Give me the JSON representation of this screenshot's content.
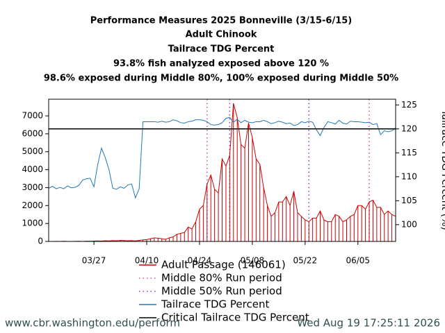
{
  "chart_data": {
    "type": "bar_line",
    "title": [
      "Performance Measures 2025 Bonneville (3/15-6/15)",
      "Adult Chinook",
      "Tailrace TDG Percent",
      "93.8% fish analyzed exposed above 120 %",
      "98.6% exposed during Middle 80%, 100% exposed during Middle 50%"
    ],
    "y2_label": "Tailrace TDG Percent (%)",
    "x": [
      "03/15",
      "03/16",
      "03/17",
      "03/18",
      "03/19",
      "03/20",
      "03/21",
      "03/22",
      "03/23",
      "03/24",
      "03/25",
      "03/26",
      "03/27",
      "03/28",
      "03/29",
      "03/30",
      "03/31",
      "04/01",
      "04/02",
      "04/03",
      "04/04",
      "04/05",
      "04/06",
      "04/07",
      "04/08",
      "04/09",
      "04/10",
      "04/11",
      "04/12",
      "04/13",
      "04/14",
      "04/15",
      "04/16",
      "04/17",
      "04/18",
      "04/19",
      "04/20",
      "04/21",
      "04/22",
      "04/23",
      "04/24",
      "04/25",
      "04/26",
      "04/27",
      "04/28",
      "04/29",
      "04/30",
      "05/01",
      "05/02",
      "05/03",
      "05/04",
      "05/05",
      "05/06",
      "05/07",
      "05/08",
      "05/09",
      "05/10",
      "05/11",
      "05/12",
      "05/13",
      "05/14",
      "05/15",
      "05/16",
      "05/17",
      "05/18",
      "05/19",
      "05/20",
      "05/21",
      "05/22",
      "05/23",
      "05/24",
      "05/25",
      "05/26",
      "05/27",
      "05/28",
      "05/29",
      "05/30",
      "05/31",
      "06/01",
      "06/02",
      "06/03",
      "06/04",
      "06/05",
      "06/06",
      "06/07",
      "06/08",
      "06/09",
      "06/10",
      "06/11",
      "06/12",
      "06/13",
      "06/14",
      "06/15"
    ],
    "xticks": [
      "03/27",
      "04/10",
      "04/24",
      "05/08",
      "05/22",
      "06/05"
    ],
    "series": [
      {
        "name": "Adult Passage (146061)",
        "color": "#cc0000",
        "axis": "y",
        "values": [
          0,
          0,
          5,
          0,
          10,
          0,
          0,
          5,
          10,
          0,
          15,
          10,
          20,
          30,
          20,
          40,
          30,
          50,
          40,
          60,
          50,
          40,
          50,
          30,
          60,
          80,
          100,
          150,
          200,
          180,
          150,
          120,
          200,
          250,
          400,
          450,
          500,
          800,
          700,
          1100,
          1800,
          2000,
          3200,
          3700,
          2900,
          2700,
          4600,
          4200,
          4800,
          7700,
          6900,
          5400,
          5200,
          6600,
          5800,
          4600,
          4300,
          3000,
          2000,
          1400,
          1600,
          2200,
          2200,
          2500,
          2000,
          2800,
          1600,
          1400,
          1200,
          1100,
          1300,
          1300,
          1700,
          1200,
          1100,
          1100,
          1500,
          1400,
          1100,
          1200,
          1400,
          1500,
          2000,
          2000,
          1800,
          2200,
          2300,
          1900,
          1900,
          1500,
          1700,
          1500,
          1400
        ]
      },
      {
        "name": "Tailrace TDG Percent",
        "color": "#1f77b4",
        "axis": "y2",
        "values": [
          107.6,
          108,
          107.5,
          107.8,
          107.5,
          108.1,
          107.7,
          107.8,
          108.2,
          109.3,
          109.6,
          109.7,
          107.9,
          112.5,
          116,
          114,
          111.5,
          107.6,
          107.4,
          107.9,
          107.6,
          108.3,
          108.5,
          105.6,
          107.5,
          121.5,
          121.5,
          121.5,
          121.5,
          121.4,
          121.6,
          121.4,
          121.5,
          121.9,
          121.7,
          121.3,
          121.2,
          121.5,
          121.6,
          121.9,
          121.9,
          121.8,
          121.5,
          120.9,
          120.8,
          120.9,
          121.3,
          122.2,
          122.4,
          121.4,
          122,
          121.3,
          121.8,
          121.4,
          121.3,
          121.5,
          121.5,
          121.8,
          121.5,
          121.1,
          121.3,
          121.6,
          121.4,
          121.1,
          121.2,
          120.7,
          120.9,
          121.5,
          121.3,
          121.6,
          121.4,
          119.8,
          118.6,
          120.3,
          121.5,
          121.3,
          121,
          121.8,
          121.2,
          121,
          121.6,
          121.5,
          121.5,
          121.4,
          121.3,
          121.4,
          120.9,
          121.1,
          118.8,
          119.6,
          119.4,
          119.6,
          120.2
        ]
      }
    ],
    "periods": [
      {
        "name": "Middle 80% Run period",
        "color": "#e0479e",
        "x": [
          "04/26",
          "06/08"
        ]
      },
      {
        "name": "Middle 50% Run period",
        "color": "#9932cc",
        "x": [
          "05/02",
          "05/23"
        ]
      }
    ],
    "critical": {
      "name": "Critical Tailrace TDG Percent",
      "color": "#000000",
      "value": 120,
      "axis": "y2"
    },
    "ylim": [
      0,
      7930
    ],
    "yticks": [
      0,
      1000,
      2000,
      3000,
      4000,
      5000,
      6000,
      7000
    ],
    "y2lim": [
      96.5,
      126.2
    ],
    "y2ticks": [
      100,
      105,
      110,
      115,
      120,
      125
    ],
    "footer": {
      "left": "www.cbr.washington.edu/perform",
      "right": "Wed Aug 19 17:25:11 2026"
    }
  }
}
